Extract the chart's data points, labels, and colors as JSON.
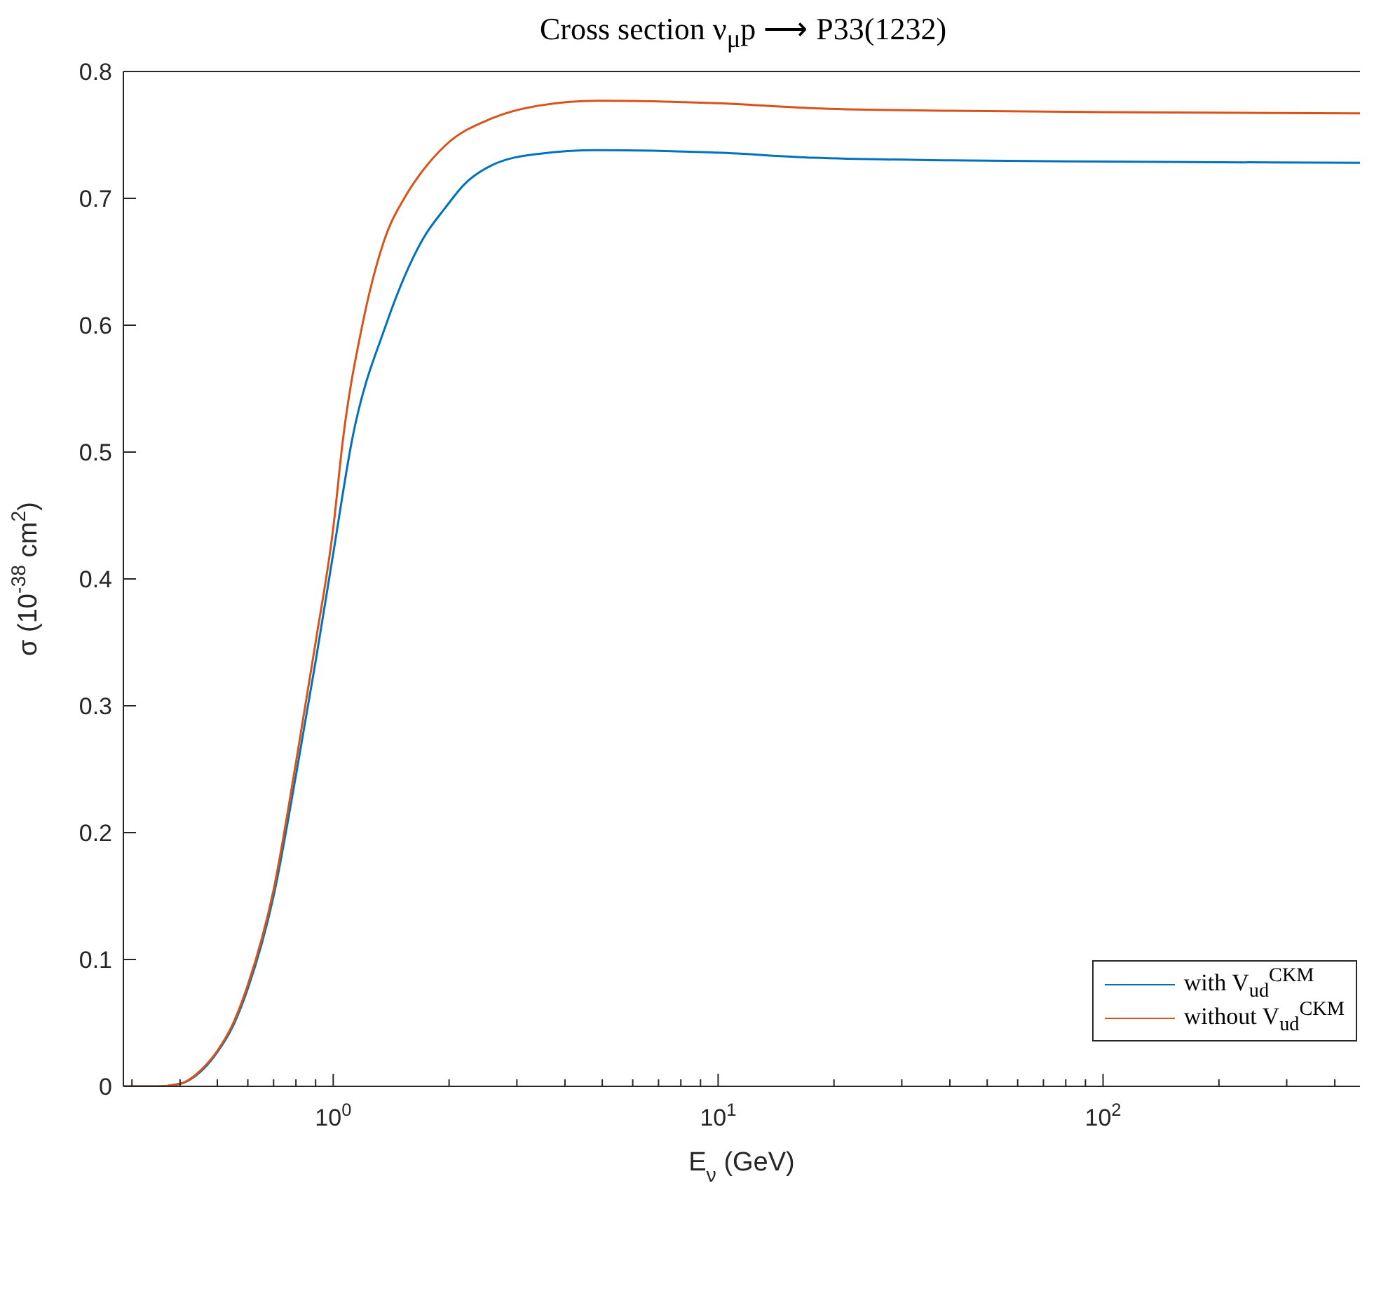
{
  "chart_data": {
    "type": "line",
    "title": "Cross section ν$_{μ}$p ⟶ P33(1232)",
    "xlabel": "E$_{ν}$ (GeV)",
    "ylabel": "σ (10$^{-38}$ cm$^{2}$)",
    "log": "x",
    "grid": false,
    "legend": "bottom right",
    "marker": "none",
    "line_style": "solid",
    "xlim": [
      0.285,
      465
    ],
    "ylim": [
      0,
      0.8
    ],
    "xticks": [
      {
        "value": 0.3,
        "label": null
      },
      {
        "value": 0.4,
        "label": null
      },
      {
        "value": 0.5,
        "label": null
      },
      {
        "value": 0.6,
        "label": null
      },
      {
        "value": 0.7,
        "label": null
      },
      {
        "value": 0.8,
        "label": null
      },
      {
        "value": 0.9,
        "label": null
      },
      {
        "value": 1,
        "label": "10$^{0}$"
      },
      {
        "value": 2,
        "label": null
      },
      {
        "value": 3,
        "label": null
      },
      {
        "value": 4,
        "label": null
      },
      {
        "value": 5,
        "label": null
      },
      {
        "value": 6,
        "label": null
      },
      {
        "value": 7,
        "label": null
      },
      {
        "value": 8,
        "label": null
      },
      {
        "value": 9,
        "label": null
      },
      {
        "value": 10,
        "label": "10$^{1}$"
      },
      {
        "value": 20,
        "label": null
      },
      {
        "value": 30,
        "label": null
      },
      {
        "value": 40,
        "label": null
      },
      {
        "value": 50,
        "label": null
      },
      {
        "value": 60,
        "label": null
      },
      {
        "value": 70,
        "label": null
      },
      {
        "value": 80,
        "label": null
      },
      {
        "value": 90,
        "label": null
      },
      {
        "value": 100,
        "label": "10$^{2}$"
      },
      {
        "value": 200,
        "label": null
      },
      {
        "value": 300,
        "label": null
      },
      {
        "value": 400,
        "label": null
      }
    ],
    "yticks": [
      0,
      0.1,
      0.2,
      0.3,
      0.4,
      0.5,
      0.6,
      0.7,
      0.8
    ],
    "series": [
      {
        "name": "with V$_{ud}$$^{CKM}$",
        "color": "#0072bd",
        "x": [
          0.285,
          0.35,
          0.4,
          0.45,
          0.5,
          0.55,
          0.6,
          0.7,
          0.8,
          0.9,
          1.0,
          1.12,
          1.37,
          1.71,
          1.96,
          2.19,
          2.58,
          3.4,
          4.86,
          10,
          17.7,
          40,
          100,
          465
        ],
        "values": [
          0,
          0,
          0.002,
          0.011,
          0.027,
          0.048,
          0.077,
          0.15,
          0.245,
          0.335,
          0.42,
          0.51,
          0.6,
          0.668,
          0.693,
          0.711,
          0.726,
          0.735,
          0.738,
          0.736,
          0.732,
          0.73,
          0.729,
          0.728
        ]
      },
      {
        "name": "without V$_{ud}$$^{CKM}$",
        "color": "#d95319",
        "x": [
          0.285,
          0.35,
          0.4,
          0.45,
          0.5,
          0.55,
          0.6,
          0.7,
          0.8,
          0.9,
          1.0,
          1.06,
          1.19,
          1.35,
          1.55,
          1.71,
          1.96,
          2.58,
          3.4,
          4.86,
          10,
          17.7,
          40,
          100,
          465
        ],
        "values": [
          0,
          0,
          0.002,
          0.012,
          0.028,
          0.05,
          0.08,
          0.155,
          0.255,
          0.35,
          0.44,
          0.51,
          0.6,
          0.665,
          0.703,
          0.722,
          0.742,
          0.763,
          0.773,
          0.777,
          0.775,
          0.771,
          0.769,
          0.768,
          0.767
        ]
      }
    ]
  }
}
